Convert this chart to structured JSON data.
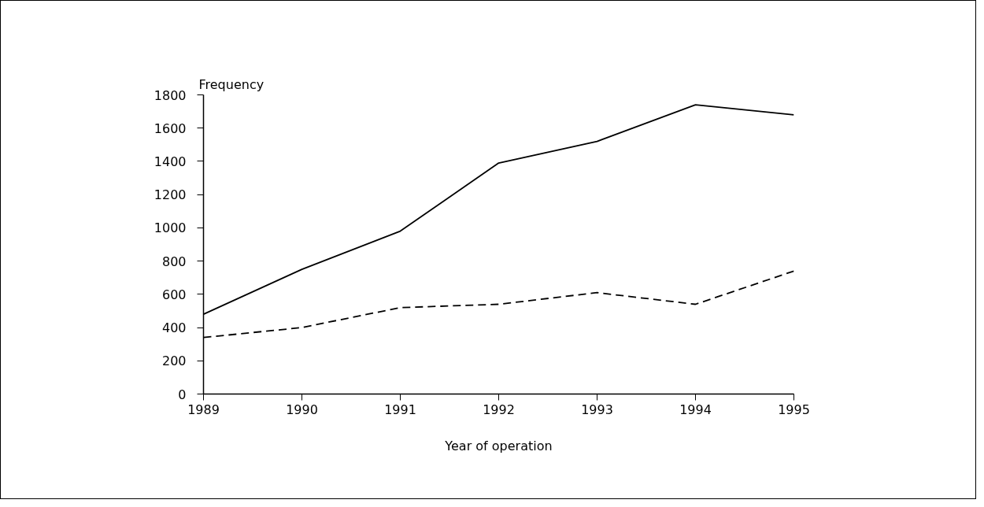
{
  "chart_data": {
    "type": "line",
    "xlabel": "Year of operation",
    "ylabel": "Frequency",
    "x": [
      1989,
      1990,
      1991,
      1992,
      1993,
      1994,
      1995
    ],
    "series": [
      {
        "color": "#000000",
        "line_style": "solid",
        "values": [
          480,
          750,
          980,
          1390,
          1520,
          1740,
          1680
        ]
      },
      {
        "color": "#000000",
        "line_style": "dashed",
        "values": [
          340,
          400,
          520,
          540,
          610,
          540,
          740
        ]
      }
    ],
    "xlim": [
      1989,
      1995
    ],
    "ylim": [
      0,
      1800
    ],
    "xticks": [
      1989,
      1990,
      1991,
      1992,
      1993,
      1994,
      1995
    ],
    "yticks": [
      0,
      200,
      400,
      600,
      800,
      1000,
      1200,
      1400,
      1600,
      1800
    ],
    "grid": false,
    "marker": "none"
  }
}
